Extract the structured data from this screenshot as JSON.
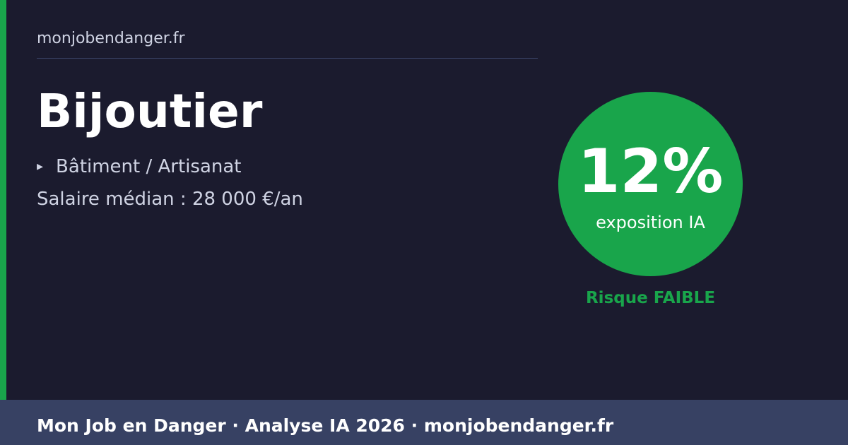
{
  "header": {
    "site": "monjobendanger.fr"
  },
  "job": {
    "title": "Bijoutier",
    "sector_icon": "triangle-right-icon",
    "sector_bullet": "▸",
    "sector": "Bâtiment / Artisanat",
    "salary": "Salaire médian : 28 000 €/an"
  },
  "exposure": {
    "percent_label": "12%",
    "percent": 12,
    "caption": "exposition IA",
    "risk_label": "Risque FAIBLE",
    "color": "#19a54b"
  },
  "footer": {
    "text": "Mon Job en Danger · Analyse IA 2026 · monjobendanger.fr"
  },
  "colors": {
    "background": "#1b1b2e",
    "accent": "#19a54b",
    "footer": "#374163"
  }
}
